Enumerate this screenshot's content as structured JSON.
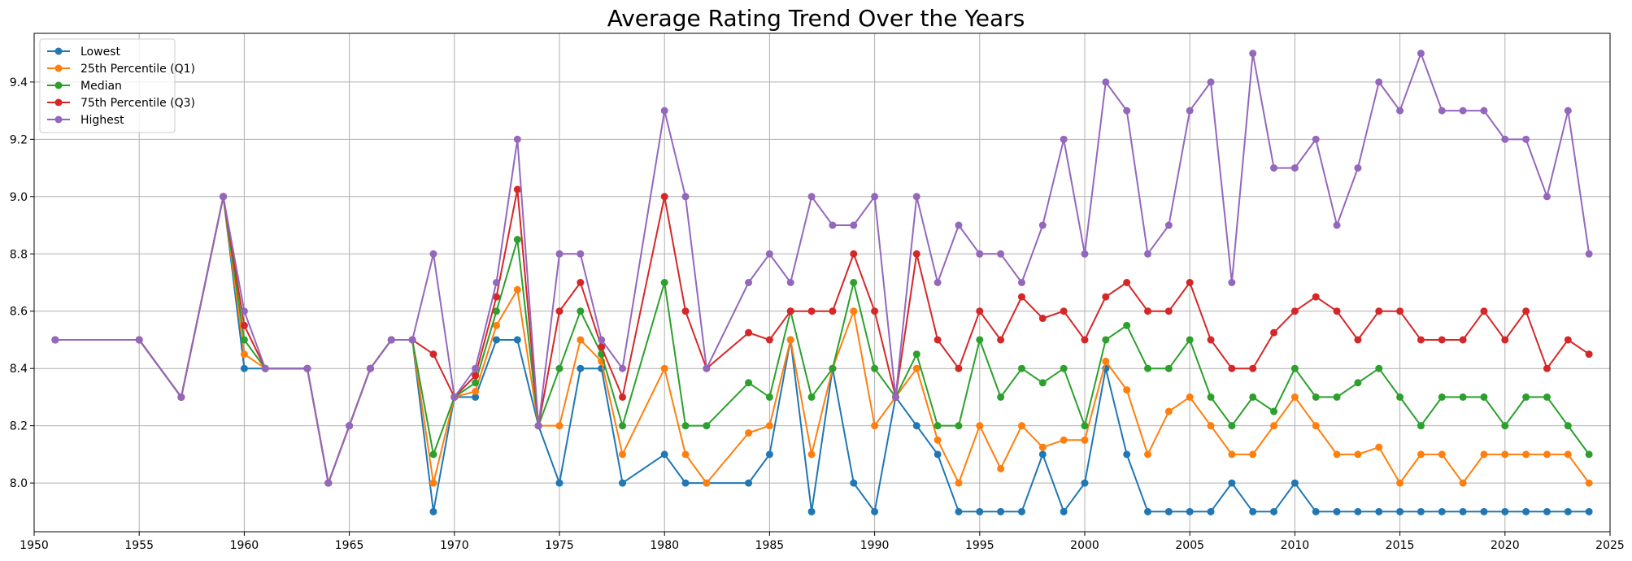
{
  "chart_data": {
    "type": "line",
    "title": "Average Rating Trend Over the Years",
    "xlabel": "",
    "ylabel": "",
    "xlim": [
      1950,
      2025
    ],
    "ylim": [
      7.83,
      9.57
    ],
    "xticks": [
      1950,
      1955,
      1960,
      1965,
      1970,
      1975,
      1980,
      1985,
      1990,
      1995,
      2000,
      2005,
      2010,
      2015,
      2020,
      2025
    ],
    "yticks": [
      8.0,
      8.2,
      8.4,
      8.6,
      8.8,
      9.0,
      9.2,
      9.4
    ],
    "grid": true,
    "legend_position": "top-left",
    "x": [
      1951,
      1955,
      1957,
      1959,
      1960,
      1961,
      1963,
      1964,
      1965,
      1966,
      1967,
      1968,
      1969,
      1970,
      1971,
      1972,
      1973,
      1974,
      1975,
      1976,
      1977,
      1978,
      1980,
      1981,
      1982,
      1984,
      1985,
      1986,
      1987,
      1988,
      1989,
      1990,
      1991,
      1992,
      1993,
      1994,
      1995,
      1996,
      1997,
      1998,
      1999,
      2000,
      2001,
      2002,
      2003,
      2004,
      2005,
      2006,
      2007,
      2008,
      2009,
      2010,
      2011,
      2012,
      2013,
      2014,
      2015,
      2016,
      2017,
      2018,
      2019,
      2020,
      2021,
      2022,
      2023,
      2024
    ],
    "series": [
      {
        "name": "Lowest",
        "color": "#1f77b4",
        "values": [
          8.5,
          8.5,
          8.3,
          9.0,
          8.4,
          8.4,
          8.4,
          8.0,
          8.2,
          8.4,
          8.5,
          8.5,
          7.9,
          8.3,
          8.3,
          8.5,
          8.5,
          8.2,
          8.0,
          8.4,
          8.4,
          8.0,
          8.1,
          8.0,
          8.0,
          8.0,
          8.1,
          8.5,
          7.9,
          8.4,
          8.0,
          7.9,
          8.3,
          8.2,
          8.1,
          7.9,
          7.9,
          7.9,
          7.9,
          8.1,
          7.9,
          8.0,
          8.4,
          8.1,
          7.9,
          7.9,
          7.9,
          7.9,
          8.0,
          7.9,
          7.9,
          8.0,
          7.9,
          7.9,
          7.9,
          7.9,
          7.9,
          7.9,
          7.9,
          7.9,
          7.9,
          7.9,
          7.9,
          7.9,
          7.9,
          7.9
        ]
      },
      {
        "name": "25th Percentile (Q1)",
        "color": "#ff7f0e",
        "values": [
          8.5,
          8.5,
          8.3,
          9.0,
          8.45,
          8.4,
          8.4,
          8.0,
          8.2,
          8.4,
          8.5,
          8.5,
          8.0,
          8.3,
          8.32,
          8.55,
          8.675,
          8.2,
          8.2,
          8.5,
          8.425,
          8.1,
          8.4,
          8.1,
          8.0,
          8.175,
          8.2,
          8.5,
          8.1,
          8.4,
          8.6,
          8.2,
          8.3,
          8.4,
          8.15,
          8.0,
          8.2,
          8.05,
          8.2,
          8.125,
          8.15,
          8.15,
          8.425,
          8.325,
          8.1,
          8.25,
          8.3,
          8.2,
          8.1,
          8.1,
          8.2,
          8.3,
          8.2,
          8.1,
          8.1,
          8.125,
          8.0,
          8.1,
          8.1,
          8.0,
          8.1,
          8.1,
          8.1,
          8.1,
          8.1,
          8.0
        ]
      },
      {
        "name": "Median",
        "color": "#2ca02c",
        "values": [
          8.5,
          8.5,
          8.3,
          9.0,
          8.5,
          8.4,
          8.4,
          8.0,
          8.2,
          8.4,
          8.5,
          8.5,
          8.1,
          8.3,
          8.35,
          8.6,
          8.85,
          8.2,
          8.4,
          8.6,
          8.45,
          8.2,
          8.7,
          8.2,
          8.2,
          8.35,
          8.3,
          8.6,
          8.3,
          8.4,
          8.7,
          8.4,
          8.3,
          8.45,
          8.2,
          8.2,
          8.5,
          8.3,
          8.4,
          8.35,
          8.4,
          8.2,
          8.5,
          8.55,
          8.4,
          8.4,
          8.5,
          8.3,
          8.2,
          8.3,
          8.25,
          8.4,
          8.3,
          8.3,
          8.35,
          8.4,
          8.3,
          8.2,
          8.3,
          8.3,
          8.3,
          8.2,
          8.3,
          8.3,
          8.2,
          8.1
        ]
      },
      {
        "name": "75th Percentile (Q3)",
        "color": "#d62728",
        "values": [
          8.5,
          8.5,
          8.3,
          9.0,
          8.55,
          8.4,
          8.4,
          8.0,
          8.2,
          8.4,
          8.5,
          8.5,
          8.45,
          8.3,
          8.375,
          8.65,
          9.025,
          8.2,
          8.6,
          8.7,
          8.475,
          8.3,
          9.0,
          8.6,
          8.4,
          8.525,
          8.5,
          8.6,
          8.6,
          8.6,
          8.8,
          8.6,
          8.3,
          8.8,
          8.5,
          8.4,
          8.6,
          8.5,
          8.65,
          8.575,
          8.6,
          8.5,
          8.65,
          8.7,
          8.6,
          8.6,
          8.7,
          8.5,
          8.4,
          8.4,
          8.525,
          8.6,
          8.65,
          8.6,
          8.5,
          8.6,
          8.6,
          8.5,
          8.5,
          8.5,
          8.6,
          8.5,
          8.6,
          8.4,
          8.5,
          8.45
        ]
      },
      {
        "name": "Highest",
        "color": "#9467bd",
        "values": [
          8.5,
          8.5,
          8.3,
          9.0,
          8.6,
          8.4,
          8.4,
          8.0,
          8.2,
          8.4,
          8.5,
          8.5,
          8.8,
          8.3,
          8.4,
          8.7,
          9.2,
          8.2,
          8.8,
          8.8,
          8.5,
          8.4,
          9.3,
          9.0,
          8.4,
          8.7,
          8.8,
          8.7,
          9.0,
          8.9,
          8.9,
          9.0,
          8.3,
          9.0,
          8.7,
          8.9,
          8.8,
          8.8,
          8.7,
          8.9,
          9.2,
          8.8,
          9.4,
          9.3,
          8.8,
          8.9,
          9.3,
          9.4,
          8.7,
          9.5,
          9.1,
          9.1,
          9.2,
          8.9,
          9.1,
          9.4,
          9.3,
          9.5,
          9.3,
          9.3,
          9.3,
          9.2,
          9.2,
          9.0,
          9.3,
          8.8
        ]
      }
    ]
  }
}
